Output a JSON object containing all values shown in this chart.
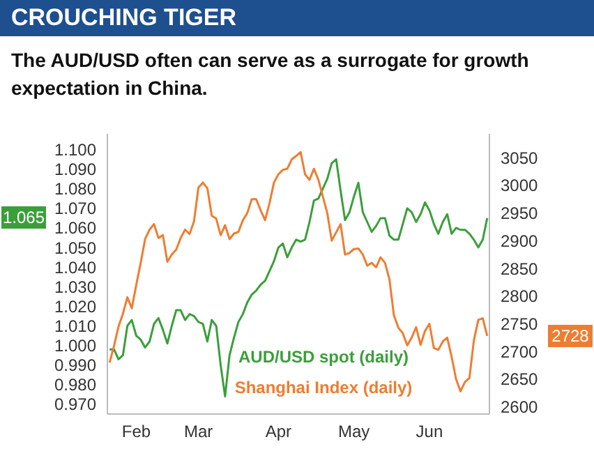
{
  "chart_data": {
    "type": "line",
    "title": "CROUCHING TIGER",
    "subtitle": "The AUD/USD often can serve as a surrogate for growth expectation in China.",
    "categories": [
      null,
      null,
      null,
      null,
      null,
      null,
      "Feb",
      null,
      null,
      null,
      null,
      null,
      null,
      null,
      null,
      null,
      null,
      null,
      null,
      null,
      "Mar",
      null,
      null,
      null,
      null,
      null,
      null,
      null,
      null,
      null,
      null,
      null,
      null,
      null,
      null,
      null,
      null,
      null,
      "Apr",
      null,
      null,
      null,
      null,
      null,
      null,
      null,
      null,
      null,
      null,
      null,
      null,
      null,
      null,
      null,
      null,
      "May",
      null,
      null,
      null,
      null,
      null,
      null,
      null,
      null,
      null,
      null,
      null,
      null,
      null,
      null,
      null,
      null,
      "Jun",
      null,
      null,
      null,
      null,
      null,
      null,
      null,
      null,
      null,
      null,
      null,
      null,
      null
    ],
    "series": [
      {
        "name": "AUD/USD spot (daily)",
        "color": "#3a9f3a",
        "axis": "y",
        "values": [
          0.998,
          0.998,
          0.993,
          0.995,
          1.01,
          1.013,
          1.005,
          1.003,
          0.999,
          1.002,
          1.011,
          1.014,
          1.008,
          1.001,
          1.01,
          1.018,
          1.018,
          1.013,
          1.016,
          1.015,
          1.012,
          1.011,
          1.002,
          1.013,
          1.01,
          0.99,
          0.974,
          0.995,
          1.004,
          1.012,
          1.016,
          1.022,
          1.026,
          1.028,
          1.031,
          1.033,
          1.038,
          1.043,
          1.05,
          1.052,
          1.045,
          1.05,
          1.054,
          1.053,
          1.054,
          1.063,
          1.074,
          1.075,
          1.08,
          1.085,
          1.093,
          1.095,
          1.079,
          1.064,
          1.068,
          1.076,
          1.083,
          1.068,
          1.063,
          1.058,
          1.061,
          1.065,
          1.065,
          1.056,
          1.054,
          1.054,
          1.062,
          1.07,
          1.068,
          1.063,
          1.067,
          1.073,
          1.069,
          1.062,
          1.057,
          1.063,
          1.067,
          1.057,
          1.06,
          1.059,
          1.059,
          1.057,
          1.054,
          1.05,
          1.054,
          1.065
        ]
      },
      {
        "name": "Shanghai Index (daily)",
        "color": "#ee7d31",
        "axis": "y2",
        "values": [
          2680,
          2710,
          2745,
          2768,
          2798,
          2778,
          2820,
          2860,
          2903,
          2920,
          2930,
          2905,
          2910,
          2862,
          2875,
          2884,
          2905,
          2920,
          2912,
          2935,
          2996,
          3005,
          2995,
          2945,
          2940,
          2910,
          2928,
          2903,
          2913,
          2916,
          2937,
          2950,
          2975,
          2975,
          2955,
          2937,
          2968,
          3005,
          3020,
          3028,
          3030,
          3047,
          3053,
          3060,
          3020,
          3010,
          3030,
          3010,
          2980,
          2950,
          2900,
          2915,
          2930,
          2875,
          2878,
          2885,
          2886,
          2875,
          2855,
          2860,
          2852,
          2870,
          2860,
          2830,
          2765,
          2743,
          2733,
          2711,
          2725,
          2744,
          2712,
          2737,
          2750,
          2706,
          2703,
          2718,
          2725,
          2690,
          2650,
          2628,
          2645,
          2652,
          2720,
          2757,
          2760,
          2728
        ]
      }
    ],
    "ylim": [
      0.965,
      1.108
    ],
    "yticks": [
      {
        "value": 0.97,
        "label": "0.970"
      },
      {
        "value": 0.98,
        "label": "0.980"
      },
      {
        "value": 0.99,
        "label": "0.990"
      },
      {
        "value": 1.0,
        "label": "1.000"
      },
      {
        "value": 1.01,
        "label": "1.010"
      },
      {
        "value": 1.02,
        "label": "1.020"
      },
      {
        "value": 1.03,
        "label": "1.030"
      },
      {
        "value": 1.04,
        "label": "1.040"
      },
      {
        "value": 1.05,
        "label": "1.050"
      },
      {
        "value": 1.06,
        "label": "1.060"
      },
      {
        "value": 1.07,
        "label": "1.070"
      },
      {
        "value": 1.08,
        "label": "1.080"
      },
      {
        "value": 1.09,
        "label": "1.090"
      },
      {
        "value": 1.1,
        "label": "1.100"
      }
    ],
    "y2lim": [
      2587,
      3093
    ],
    "y2ticks": [
      2600,
      2650,
      2700,
      2750,
      2800,
      2850,
      2900,
      2950,
      3000,
      3050
    ],
    "annotations": [
      "1.065",
      "2728"
    ],
    "grid": false,
    "legend": "bottom",
    "marker": "none",
    "line_style": "solid"
  }
}
